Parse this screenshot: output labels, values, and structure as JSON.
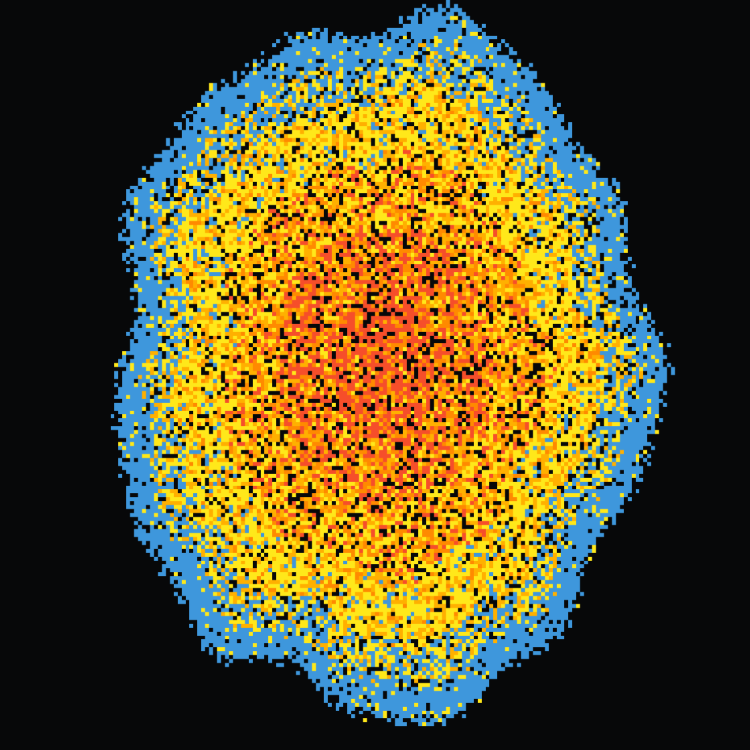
{
  "scene": {
    "kind": "pixel-growth-cluster",
    "background_color": "#070809",
    "palette": {
      "edge": "#3e97dc",
      "outer": "#ffe81a",
      "middle": "#ffb000",
      "inner": "#ff8a00",
      "core": "#f64e2a",
      "hole": "#070809"
    }
  }
}
